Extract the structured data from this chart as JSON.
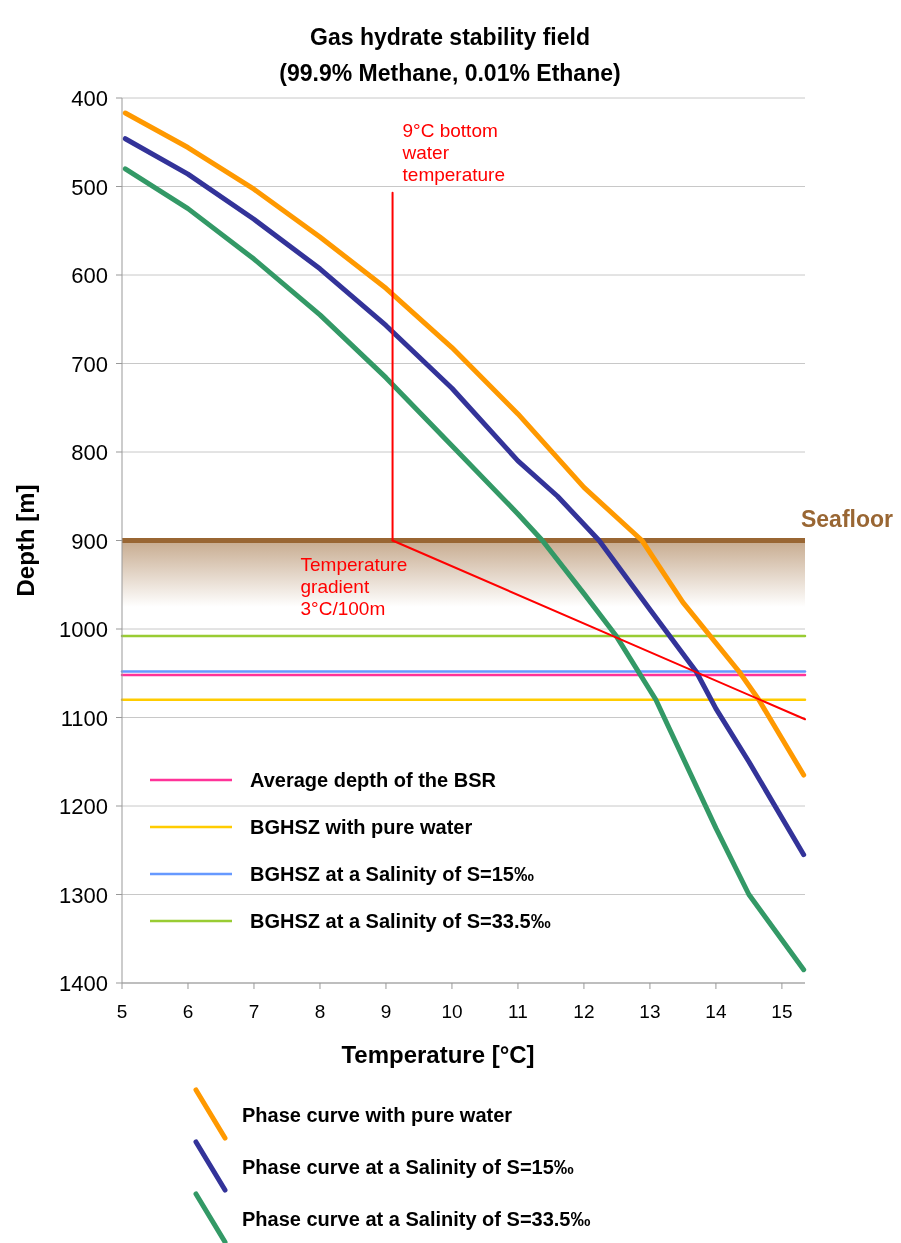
{
  "chart_data": {
    "type": "line",
    "title": "Gas hydrate stability field",
    "subtitle": "(99.9% Methane, 0.01% Ethane)",
    "xlabel": "Temperature [°C]",
    "ylabel": "Depth [m]",
    "xlim": [
      5,
      15.35
    ],
    "xticks": [
      5,
      6,
      7,
      8,
      9,
      10,
      11,
      12,
      13,
      14,
      15
    ],
    "ylim": [
      1400,
      400
    ],
    "yticks": [
      400,
      500,
      600,
      700,
      800,
      900,
      1000,
      1100,
      1200,
      1300,
      1400
    ],
    "grid": "y",
    "legend": "bottom",
    "line_style": "solid",
    "series": [
      {
        "name": "Average depth of the BSR",
        "color": "#ff3399",
        "x": [
          5,
          15.35
        ],
        "values": [
          1052,
          1052
        ]
      },
      {
        "name": "BGHSZ with pure water",
        "color": "#ffcc00",
        "x": [
          5,
          15.35
        ],
        "values": [
          1080,
          1080
        ]
      },
      {
        "name": "BGHSZ at a Salinity of S=15‰",
        "color": "#6699ff",
        "x": [
          5,
          15.35
        ],
        "values": [
          1048,
          1048
        ]
      },
      {
        "name": "BGHSZ at a Salinity of S=33.5‰",
        "color": "#99cc33",
        "x": [
          5,
          15.35
        ],
        "values": [
          1008,
          1008
        ]
      },
      {
        "name": "Phase curve with pure water",
        "color": "#ff9900",
        "x": [
          5.05,
          6,
          7,
          8,
          9,
          10,
          11,
          12,
          12.88,
          13.5,
          14.35,
          14.65,
          15.33
        ],
        "values": [
          417,
          456,
          503,
          557,
          615,
          682,
          757,
          840,
          900,
          970,
          1048,
          1080,
          1165
        ]
      },
      {
        "name": "Phase curve at a Salinity of S=15‰",
        "color": "#333399",
        "x": [
          5.05,
          6,
          7,
          8,
          9,
          10,
          11,
          11.6,
          12.23,
          13,
          13.7,
          14,
          14.5,
          15.33
        ],
        "values": [
          446,
          486,
          537,
          593,
          657,
          728,
          810,
          850,
          900,
          978,
          1048,
          1090,
          1150,
          1255
        ]
      },
      {
        "name": "Phase curve at a Salinity of S=33.5‰",
        "color": "#339966",
        "x": [
          5.05,
          6,
          7,
          8,
          9,
          10,
          11,
          11.37,
          12,
          12.49,
          13.09,
          14,
          14.5,
          15.33
        ],
        "values": [
          480,
          525,
          582,
          645,
          716,
          793,
          870,
          900,
          960,
          1008,
          1080,
          1225,
          1300,
          1385
        ]
      },
      {
        "color": "#ff0000",
        "x": [
          9.1,
          9.1
        ],
        "values": [
          507,
          900
        ]
      },
      {
        "color": "#ff0000",
        "x": [
          9.1,
          15.35
        ],
        "values": [
          900,
          1102
        ]
      }
    ],
    "ref_lines": [
      {
        "axis": "y",
        "value": 900,
        "color": "#996633"
      }
    ],
    "bands": [
      {
        "axis": "y",
        "from": 900,
        "to": 975,
        "label": "Seafloor",
        "color": "#996633"
      }
    ],
    "annotations": [
      {
        "text": "9°C bottom water temperature",
        "x": 9.1,
        "y": 507
      },
      {
        "text": "Temperature gradient 3°C/100m",
        "x": 9.1,
        "y": 900
      }
    ]
  }
}
